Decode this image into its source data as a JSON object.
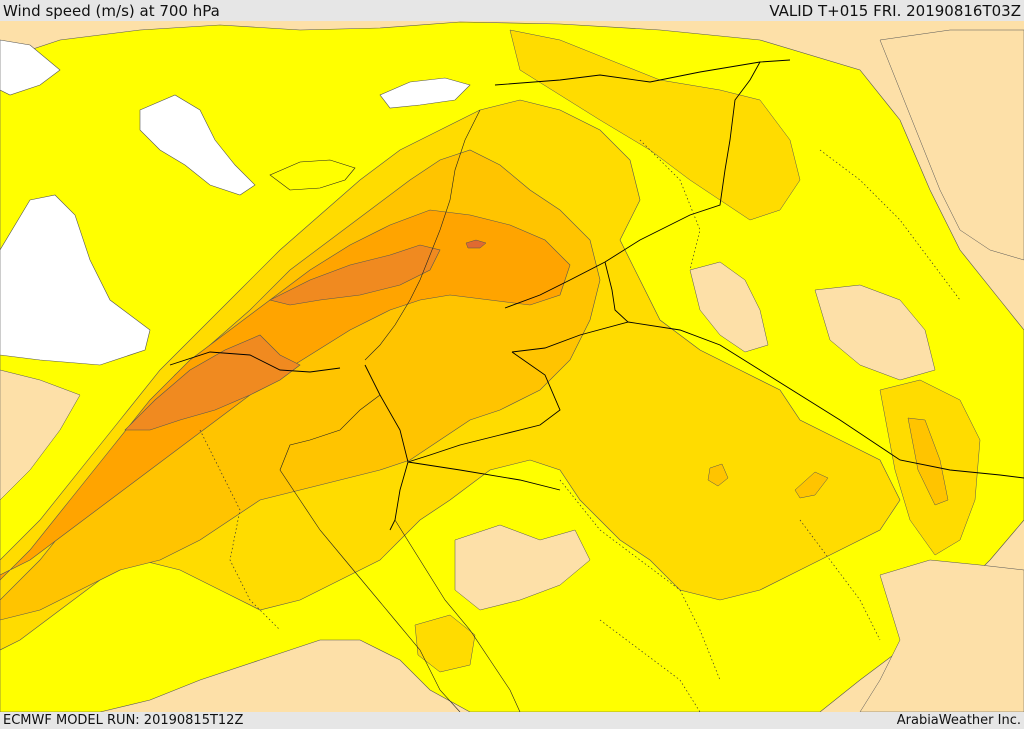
{
  "header": {
    "title": "Wind speed (m/s) at 700 hPa",
    "valid": "VALID T+015 FRI. 20190816T03Z"
  },
  "footer": {
    "model_run": "ECMWF MODEL RUN: 20190815T12Z",
    "credit": "ArabiaWeather Inc."
  },
  "colors": {
    "sea_calm": "#ffffff",
    "land_low": "#fde0a8",
    "band_yellow": "#ffff00",
    "band_gold": "#ffdc00",
    "band_amber": "#ffc400",
    "band_orange": "#ffa400",
    "band_dark": "#f08a20",
    "band_core": "#e06a30",
    "borders": "#000000"
  }
}
